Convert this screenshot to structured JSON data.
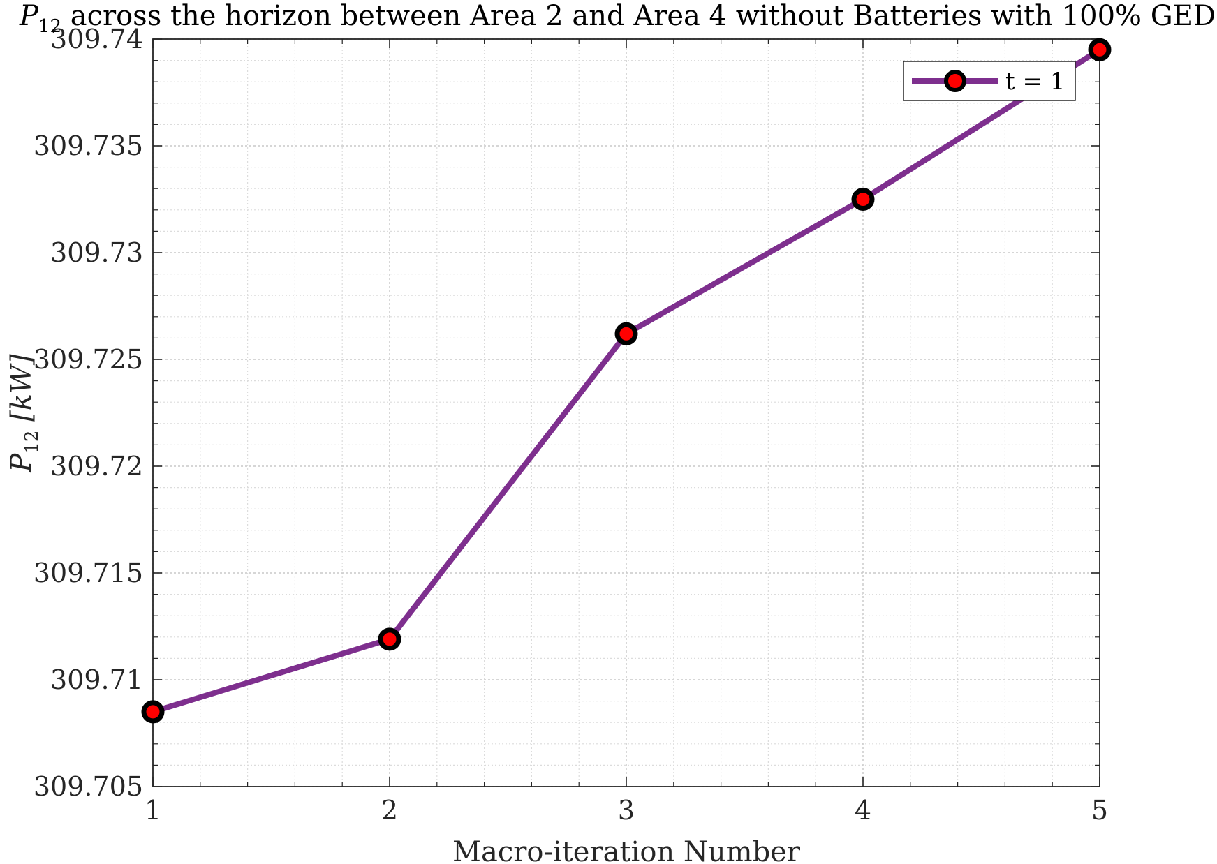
{
  "chart_data": {
    "type": "line",
    "title_symbol": "P",
    "title_subscript": "12",
    "title_text": " across the horizon between Area 2 and Area 4 without Batteries with 100% GED",
    "xlabel": "Macro-iteration Number",
    "ylabel_symbol": "P",
    "ylabel_subscript": "12",
    "ylabel_unit": " [kW]",
    "x": [
      1,
      2,
      3,
      4,
      5
    ],
    "series": [
      {
        "name": "t = 1",
        "values": [
          309.7085,
          309.7119,
          309.7262,
          309.7325,
          309.7395
        ]
      }
    ],
    "xlim": [
      1,
      5
    ],
    "ylim": [
      309.705,
      309.74
    ],
    "xticks": [
      "1",
      "2",
      "3",
      "4",
      "5"
    ],
    "yticks": [
      "309.705",
      "309.71",
      "309.715",
      "309.72",
      "309.725",
      "309.73",
      "309.735",
      "309.74"
    ],
    "grid": true,
    "minor_grid": true,
    "legend_position": "top-right",
    "colors": {
      "line": "#7E2F8E",
      "marker_edge": "#000000",
      "marker_face": "#FF0000"
    }
  }
}
